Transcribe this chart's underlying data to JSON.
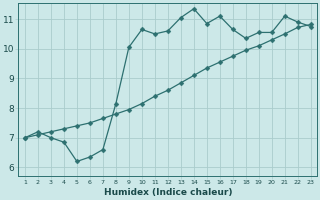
{
  "xlabel": "Humidex (Indice chaleur)",
  "xlim": [
    0.5,
    23.5
  ],
  "ylim": [
    5.7,
    11.55
  ],
  "xticks": [
    1,
    2,
    3,
    4,
    5,
    6,
    7,
    8,
    9,
    10,
    11,
    12,
    13,
    14,
    15,
    16,
    17,
    18,
    19,
    20,
    21,
    22,
    23
  ],
  "yticks": [
    6,
    7,
    8,
    9,
    10,
    11
  ],
  "bg_color": "#cce8e8",
  "line_color": "#2d7070",
  "grid_color": "#aacccc",
  "curve1_x": [
    1,
    2,
    3,
    4,
    5,
    6,
    7,
    8,
    9,
    10,
    11,
    12,
    13,
    14,
    15,
    16,
    17,
    18,
    19,
    20,
    21,
    22,
    23
  ],
  "curve1_y": [
    7.0,
    7.2,
    7.0,
    6.85,
    6.2,
    6.35,
    6.6,
    8.15,
    10.05,
    10.65,
    10.5,
    10.6,
    11.05,
    11.35,
    10.85,
    11.1,
    10.65,
    10.35,
    10.55,
    10.55,
    11.1,
    10.9,
    10.75
  ],
  "curve2_x": [
    1,
    2,
    3,
    4,
    5,
    6,
    7,
    8,
    9,
    10,
    11,
    12,
    13,
    14,
    15,
    16,
    17,
    18,
    19,
    20,
    21,
    22,
    23
  ],
  "curve2_y": [
    7.0,
    7.1,
    7.2,
    7.3,
    7.4,
    7.5,
    7.65,
    7.8,
    7.95,
    8.15,
    8.4,
    8.6,
    8.85,
    9.1,
    9.35,
    9.55,
    9.75,
    9.95,
    10.1,
    10.3,
    10.5,
    10.72,
    10.82
  ],
  "markersize": 2.5,
  "linewidth": 0.9
}
